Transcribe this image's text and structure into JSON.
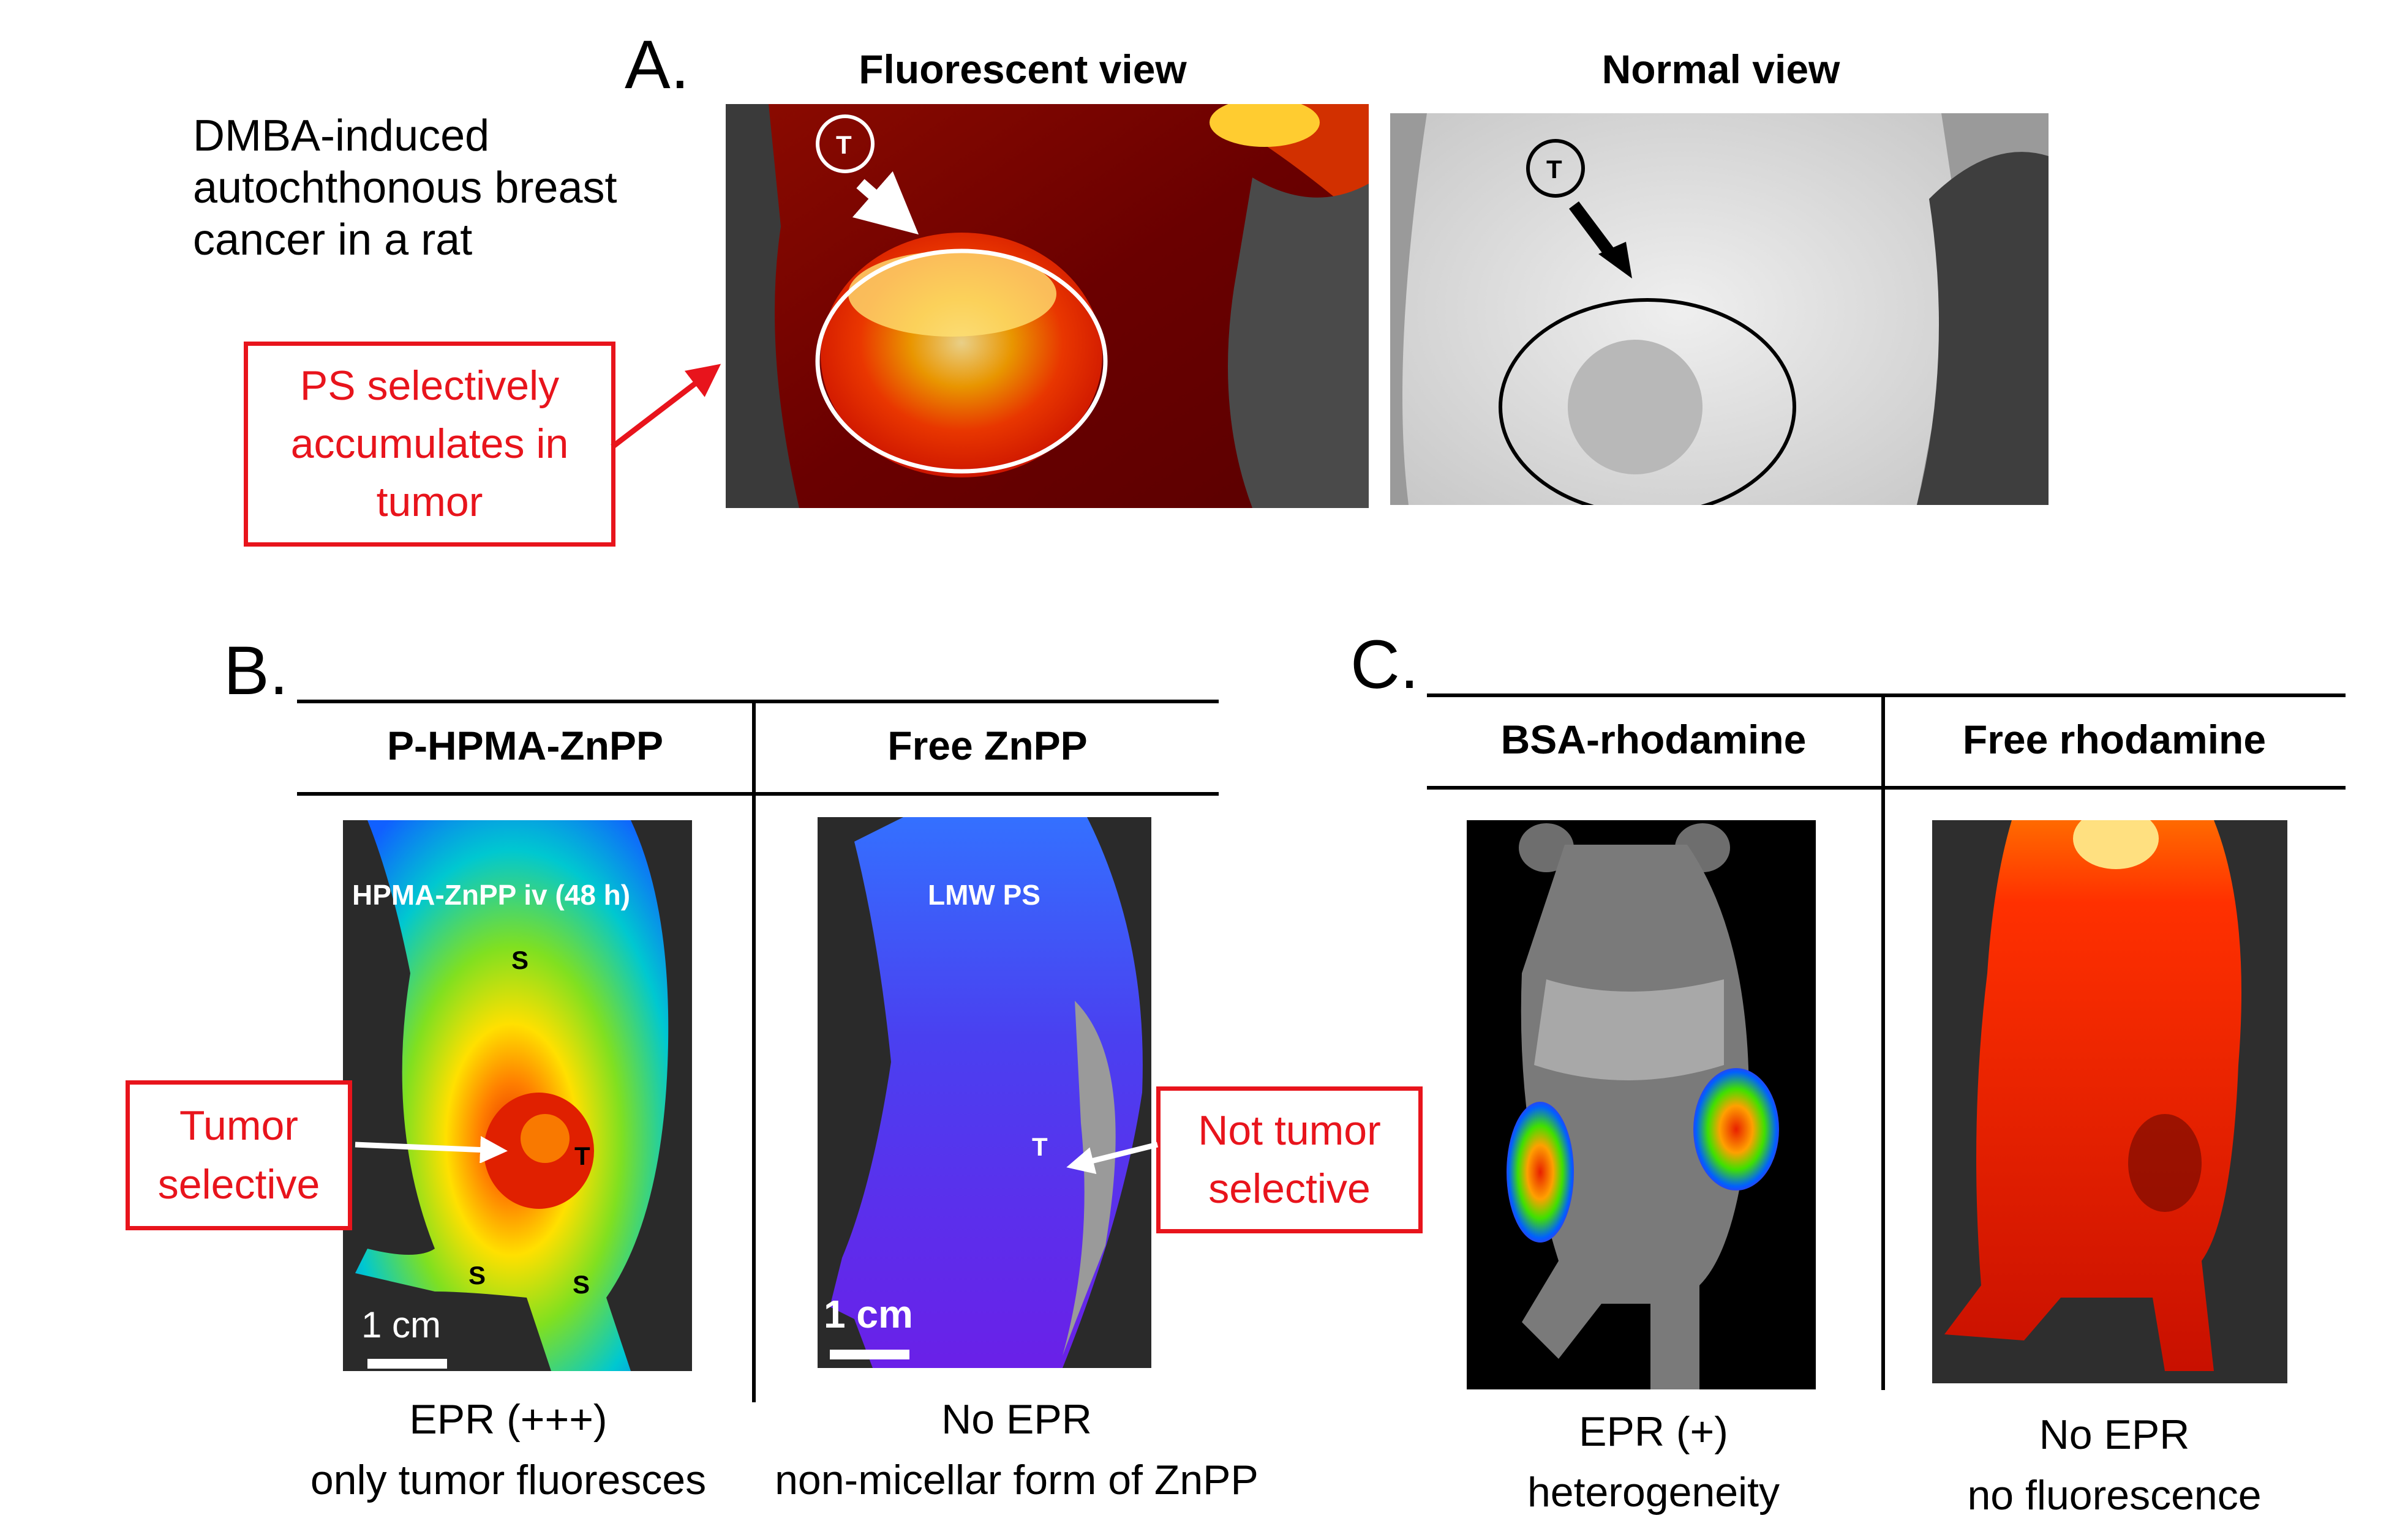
{
  "panel_a": {
    "letter": "A.",
    "description": "DMBA-induced autochthonous breast cancer in a rat",
    "fluorescent_header": "Fluorescent view",
    "normal_header": "Normal view",
    "callout_lines": [
      "PS selectively",
      "accumulates in",
      "tumor"
    ],
    "tumor_marker": "T"
  },
  "panel_b": {
    "letter": "B.",
    "col1_header": "P-HPMA-ZnPP",
    "col2_header": "Free ZnPP",
    "img1_label": "HPMA-ZnPP iv (48 h)",
    "img2_label": "LMW PS",
    "spleen_marker": "S",
    "tumor_marker": "T",
    "scale_bar": "1 cm",
    "callout_left_lines": [
      "Tumor",
      "selective"
    ],
    "callout_right_lines": [
      "Not tumor",
      "selective"
    ],
    "caption1_lines": [
      "EPR (+++)",
      "only tumor fluoresces"
    ],
    "caption2_lines": [
      "No EPR",
      "non-micellar form of ZnPP"
    ]
  },
  "panel_c": {
    "letter": "C.",
    "col1_header": "BSA-rhodamine",
    "col2_header": "Free rhodamine",
    "caption1_lines": [
      "EPR (+)",
      "heterogeneity"
    ],
    "caption2_lines": [
      "No EPR",
      "no fluorescence"
    ]
  },
  "colors": {
    "callout_red": "#e8141c",
    "rule_black": "#000000"
  }
}
